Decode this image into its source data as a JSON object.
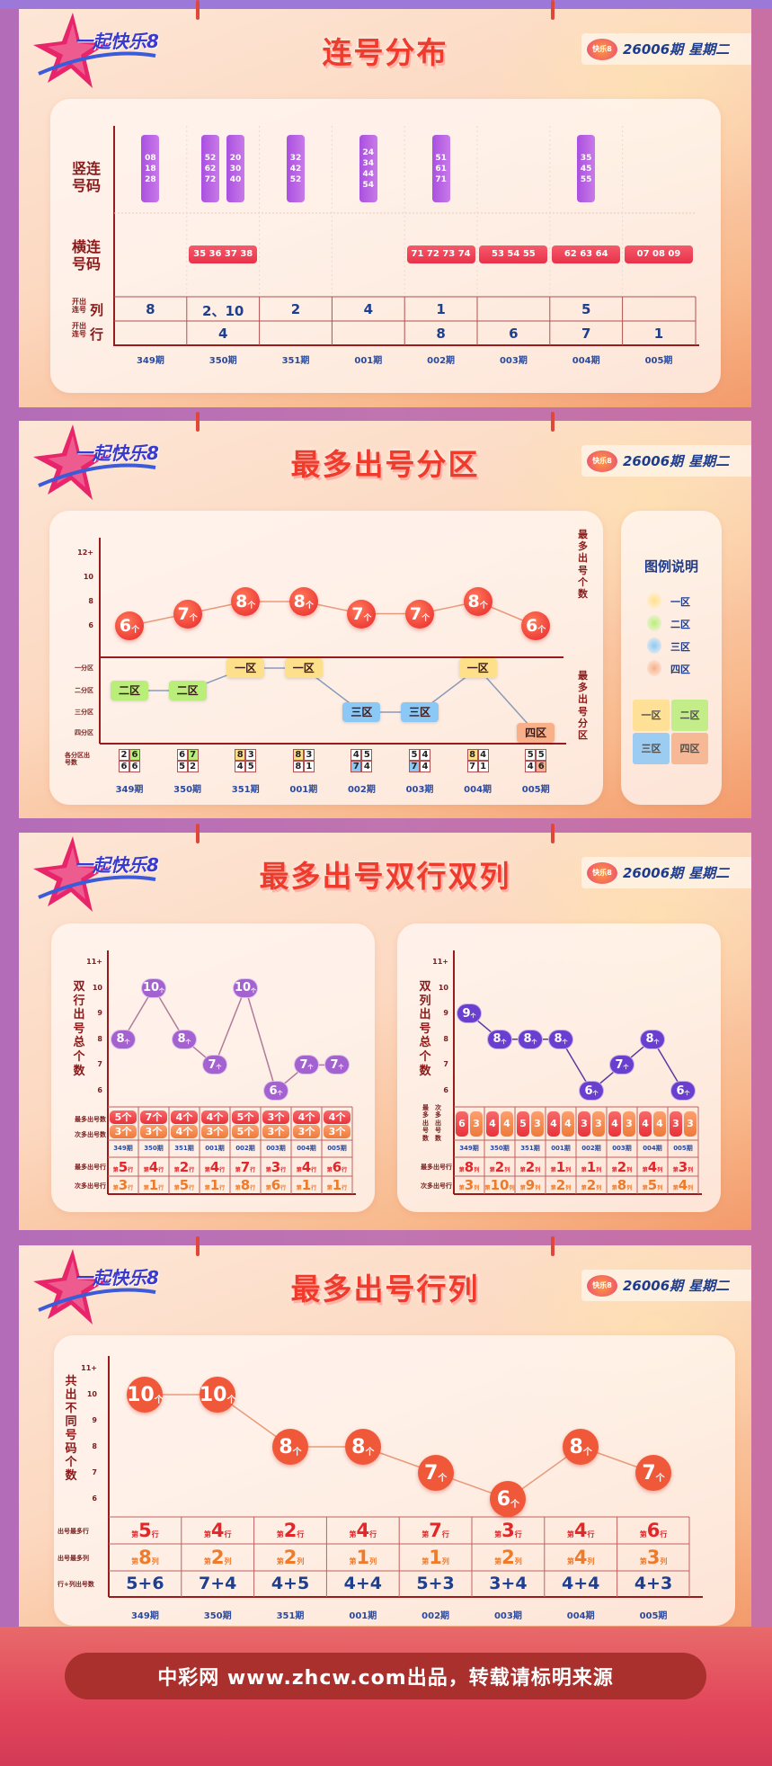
{
  "header": {
    "logo_text": "一起快乐8",
    "badge_logo": "快乐8",
    "period": "26006期",
    "weekday": "星期二"
  },
  "periods": [
    "349期",
    "350期",
    "351期",
    "001期",
    "002期",
    "003期",
    "004期",
    "005期"
  ],
  "colors": {
    "title": "#ef3b2c",
    "period_label": "#2a4aa0",
    "axis": "#9a1b1b",
    "pill_vertical": "#b35ee0",
    "pill_horizontal": "#f0405a",
    "ball_red": "#f0583a",
    "purple_row": "#a462d0",
    "purple_col": "#6a3fd0",
    "zone1": "#ffe08a",
    "zone2": "#b9ee7a",
    "zone3": "#8cc8f5",
    "zone4": "#f7b08a"
  },
  "s1": {
    "title": "连号分布",
    "label_vertical": "竖连号码",
    "label_horizontal": "横连号码",
    "label_col_small": "开出连号",
    "label_col": "列",
    "label_row_small": "开出连号",
    "label_row": "行",
    "vertical": [
      [
        [
          "08",
          "18",
          "28"
        ]
      ],
      [
        [
          "52",
          "62",
          "72"
        ],
        [
          "20",
          "30",
          "40"
        ]
      ],
      [
        [
          "32",
          "42",
          "52"
        ]
      ],
      [
        [
          "24",
          "34",
          "44",
          "54"
        ]
      ],
      [
        [
          "51",
          "61",
          "71"
        ]
      ],
      [],
      [
        [
          "35",
          "45",
          "55"
        ]
      ],
      []
    ],
    "horizontal": [
      "",
      "35 36 37 38",
      "",
      "",
      "71 72 73 74",
      "53 54 55",
      "62 63 64",
      "07 08 09"
    ],
    "columns": [
      "8",
      "2、10",
      "2",
      "4",
      "1",
      "",
      "5",
      ""
    ],
    "rows": [
      "",
      "4",
      "",
      "",
      "8",
      "6",
      "7",
      "1"
    ]
  },
  "s2": {
    "title": "最多出号分区",
    "ticks": [
      "12+",
      "10",
      "8",
      "6"
    ],
    "zone_axis": [
      "一分区",
      "二分区",
      "三分区",
      "四分区"
    ],
    "grid_label": "各分区出号数",
    "right_label_count": "最多出号个数",
    "right_label_zone": "最多出号分区",
    "unit": "个",
    "zones": [
      "二区",
      "二区",
      "一区",
      "一区",
      "三区",
      "三区",
      "一区",
      "四区"
    ],
    "grids": [
      [
        2,
        6,
        6,
        6
      ],
      [
        6,
        7,
        5,
        2
      ],
      [
        8,
        3,
        4,
        5
      ],
      [
        8,
        3,
        8,
        1
      ],
      [
        4,
        5,
        7,
        4
      ],
      [
        5,
        4,
        7,
        4
      ],
      [
        8,
        4,
        7,
        1
      ],
      [
        5,
        5,
        4,
        6
      ]
    ],
    "legend": {
      "title": "图例说明",
      "items": [
        "一区",
        "二区",
        "三区",
        "四区"
      ]
    }
  },
  "s3": {
    "title": "最多出号双行双列",
    "left": {
      "ylabel": "双行出号总个数",
      "ticks": [
        "11+",
        "10",
        "9",
        "8",
        "7",
        "6"
      ],
      "label_most": "最多出号数",
      "label_second": "次多出号数",
      "label_most_line": "最多出号行",
      "label_second_line": "次多出号行",
      "unit_count": "个",
      "prefix": "第",
      "unit_line": "行",
      "most_line": [
        5,
        4,
        2,
        4,
        7,
        3,
        4,
        6
      ],
      "second_line": [
        3,
        1,
        5,
        1,
        8,
        6,
        1,
        1
      ]
    },
    "right": {
      "ylabel": "双列出号总个数",
      "ticks": [
        "11+",
        "10",
        "9",
        "8",
        "7",
        "6"
      ],
      "label_most": "最多出号数",
      "label_second": "次多出号数",
      "label_most_line": "最多出号行",
      "label_second_line": "次多出号行",
      "unit_count": "个",
      "prefix": "第",
      "unit_line": "列",
      "most_line": [
        8,
        2,
        2,
        1,
        1,
        2,
        4,
        3
      ],
      "second_line": [
        3,
        10,
        9,
        2,
        2,
        8,
        5,
        4
      ]
    }
  },
  "s4": {
    "title": "最多出号行列",
    "ylabel": "共出不同号码个数",
    "ticks": [
      "11+",
      "10",
      "9",
      "8",
      "7",
      "6"
    ],
    "label_row": "出号最多行",
    "label_col": "出号最多列",
    "label_sum": "行+列出号数",
    "unit": "个",
    "prefix": "第",
    "unit_row": "行",
    "unit_col": "列",
    "most_row": [
      5,
      4,
      2,
      4,
      7,
      3,
      4,
      6
    ],
    "most_col": [
      8,
      2,
      2,
      1,
      1,
      2,
      4,
      3
    ],
    "sums": [
      "5+6",
      "7+4",
      "4+5",
      "4+4",
      "5+3",
      "3+4",
      "4+4",
      "4+3"
    ]
  },
  "chart_data": [
    {
      "type": "line",
      "title": "最多出号分区",
      "ylabel": "最多出号个数",
      "categories": [
        "349期",
        "350期",
        "351期",
        "001期",
        "002期",
        "003期",
        "004期",
        "005期"
      ],
      "values": [
        6,
        7,
        8,
        8,
        7,
        7,
        8,
        6
      ],
      "ylim": [
        6,
        12
      ]
    },
    {
      "type": "line",
      "title": "最多出号双行双列",
      "ylabel": "双行出号总个数",
      "categories": [
        "349期",
        "350期",
        "351期",
        "001期",
        "002期",
        "003期",
        "004期",
        "005期"
      ],
      "values": [
        8,
        10,
        8,
        7,
        10,
        6,
        7,
        7
      ],
      "most": [
        5,
        7,
        4,
        4,
        5,
        3,
        4,
        4
      ],
      "second": [
        3,
        3,
        4,
        3,
        5,
        3,
        3,
        3
      ],
      "ylim": [
        6,
        11
      ]
    },
    {
      "type": "line",
      "title": "最多出号双行双列",
      "ylabel": "双列出号总个数",
      "categories": [
        "349期",
        "350期",
        "351期",
        "001期",
        "002期",
        "003期",
        "004期",
        "005期"
      ],
      "values": [
        9,
        8,
        8,
        8,
        6,
        7,
        8,
        6
      ],
      "most": [
        6,
        4,
        5,
        4,
        3,
        4,
        4,
        3
      ],
      "second": [
        3,
        4,
        3,
        4,
        3,
        3,
        4,
        3
      ],
      "ylim": [
        6,
        11
      ]
    },
    {
      "type": "line",
      "title": "最多出号行列",
      "ylabel": "共出不同号码个数",
      "categories": [
        "349期",
        "350期",
        "351期",
        "001期",
        "002期",
        "003期",
        "004期",
        "005期"
      ],
      "values": [
        10,
        10,
        8,
        8,
        7,
        6,
        8,
        7
      ],
      "ylim": [
        6,
        11
      ]
    }
  ],
  "footer": "中彩网 www.zhcw.com出品，转载请标明来源"
}
